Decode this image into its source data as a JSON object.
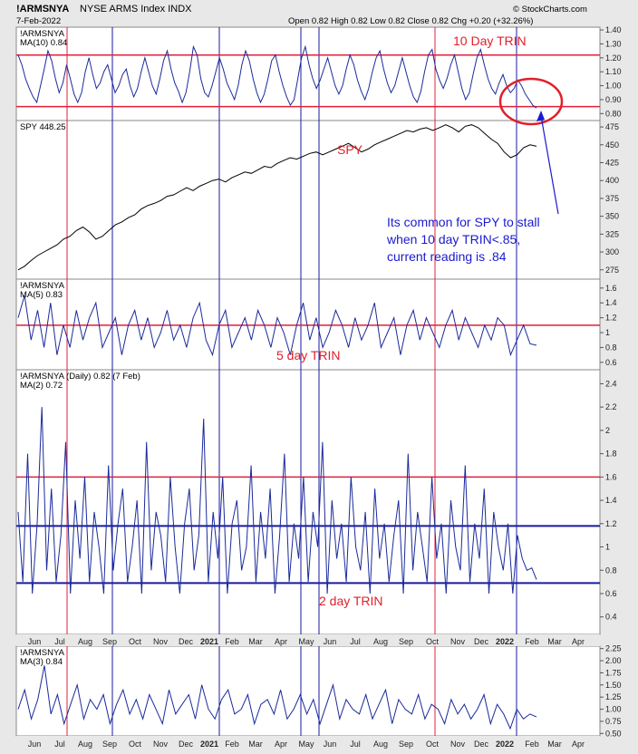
{
  "header": {
    "symbol": "!ARMSNYA",
    "name": "NYSE ARMS Index INDX",
    "date": "7-Feb-2022",
    "ohlc": "Open 0.82  High 0.82  Low 0.82  Close 0.82  Chg +0.20 (+32.26%)",
    "brand": "© StockCharts.com"
  },
  "annotations": {
    "trin10": "10 Day TRIN",
    "spy": "SPY",
    "trin5": "5 day TRIN",
    "trin2": "2 day TRIN",
    "note_line1": "Its common for SPY to stall",
    "note_line2": "when 10 day TRIN<.85,",
    "note_line3": "current reading is .84"
  },
  "panel_labels": {
    "p1a": "!ARMSNYA",
    "p1b": "MA(10) 0.84",
    "p2a": "SPY 448.25",
    "p3a": "!ARMSNYA",
    "p3b": "MA(5) 0.83",
    "p4a": "!ARMSNYA (Daily) 0.82 (7 Feb)",
    "p4b": "MA(2) 0.72",
    "p5a": "!ARMSNYA",
    "p5b": "MA(3) 0.84"
  },
  "colors": {
    "series": "#1a2a9a",
    "red_line": "#e0203a",
    "blue_line": "#1a1aa0",
    "spy": "#000000",
    "circle": "#e0202a"
  },
  "chart_data": [
    {
      "type": "line",
      "name": "10 Day TRIN",
      "ylim": [
        0.75,
        1.42
      ],
      "yticks": [
        0.8,
        0.9,
        1.0,
        1.1,
        1.2,
        1.3,
        1.4
      ],
      "ytick_labels": [
        "0.80",
        "0.90",
        "1.00",
        "1.10",
        "1.20",
        "1.30",
        "1.40"
      ],
      "hlines": [
        {
          "y": 1.22,
          "color": "red"
        },
        {
          "y": 0.85,
          "color": "red"
        }
      ],
      "values": [
        1.22,
        1.15,
        1.05,
        0.98,
        0.92,
        0.88,
        1.0,
        1.12,
        1.25,
        1.18,
        1.05,
        0.95,
        1.02,
        1.15,
        1.05,
        0.94,
        0.88,
        0.95,
        1.1,
        1.2,
        1.08,
        0.98,
        1.02,
        1.1,
        1.15,
        1.05,
        0.95,
        1.0,
        1.08,
        1.12,
        1.0,
        0.92,
        0.98,
        1.1,
        1.2,
        1.1,
        1.0,
        0.94,
        1.05,
        1.18,
        1.25,
        1.12,
        1.02,
        0.96,
        0.88,
        0.95,
        1.1,
        1.28,
        1.22,
        1.05,
        0.95,
        0.92,
        1.0,
        1.1,
        1.2,
        1.12,
        1.02,
        0.96,
        0.9,
        1.0,
        1.15,
        1.25,
        1.18,
        1.05,
        0.95,
        0.88,
        0.94,
        1.05,
        1.18,
        1.22,
        1.1,
        1.0,
        0.92,
        0.86,
        0.9,
        1.05,
        1.2,
        1.28,
        1.15,
        1.05,
        0.98,
        1.04,
        1.12,
        1.2,
        1.1,
        1.0,
        0.94,
        1.0,
        1.12,
        1.22,
        1.15,
        1.04,
        0.96,
        0.9,
        0.98,
        1.1,
        1.2,
        1.25,
        1.12,
        1.02,
        0.95,
        1.0,
        1.1,
        1.2,
        1.1,
        1.0,
        0.92,
        0.88,
        0.96,
        1.1,
        1.22,
        1.26,
        1.12,
        1.04,
        0.98,
        1.05,
        1.15,
        1.22,
        1.1,
        0.98,
        0.9,
        0.95,
        1.08,
        1.2,
        1.26,
        1.15,
        1.05,
        0.98,
        0.94,
        1.02,
        1.08,
        1.0,
        0.95,
        0.98,
        1.04,
        1.0,
        0.94,
        0.9,
        0.86,
        0.84
      ]
    },
    {
      "type": "line",
      "name": "SPY",
      "ylim": [
        262,
        484
      ],
      "yticks": [
        275,
        300,
        325,
        350,
        375,
        400,
        425,
        450,
        475
      ],
      "values": [
        275,
        280,
        288,
        295,
        300,
        305,
        310,
        318,
        322,
        330,
        335,
        328,
        318,
        322,
        330,
        338,
        342,
        348,
        352,
        360,
        365,
        368,
        372,
        378,
        380,
        385,
        390,
        386,
        392,
        396,
        400,
        402,
        398,
        404,
        408,
        412,
        410,
        415,
        420,
        418,
        424,
        428,
        432,
        430,
        434,
        438,
        440,
        436,
        440,
        444,
        448,
        452,
        446,
        440,
        444,
        450,
        454,
        458,
        462,
        466,
        470,
        468,
        472,
        474,
        470,
        474,
        478,
        474,
        468,
        476,
        478,
        474,
        466,
        458,
        452,
        440,
        432,
        436,
        446,
        450,
        448
      ]
    },
    {
      "type": "line",
      "name": "5 day TRIN",
      "ylim": [
        0.5,
        1.72
      ],
      "yticks": [
        0.6,
        0.8,
        1.0,
        1.2,
        1.4,
        1.6
      ],
      "hlines": [
        {
          "y": 1.1,
          "color": "red"
        }
      ],
      "values": [
        1.2,
        1.5,
        0.9,
        1.3,
        0.8,
        1.4,
        0.7,
        1.1,
        0.8,
        1.3,
        0.9,
        1.2,
        1.4,
        0.8,
        1.0,
        1.2,
        0.7,
        1.1,
        1.3,
        0.9,
        1.2,
        0.8,
        1.0,
        1.3,
        0.9,
        1.1,
        0.8,
        1.2,
        1.4,
        0.9,
        0.7,
        1.1,
        1.3,
        0.8,
        1.0,
        1.2,
        0.9,
        1.3,
        1.1,
        0.8,
        1.2,
        1.0,
        0.7,
        1.1,
        1.4,
        0.9,
        1.2,
        0.8,
        1.0,
        1.3,
        1.1,
        0.8,
        1.2,
        0.9,
        1.1,
        1.4,
        0.8,
        1.0,
        1.2,
        0.7,
        1.1,
        1.3,
        0.9,
        1.2,
        1.0,
        0.8,
        1.1,
        1.3,
        0.9,
        1.2,
        1.0,
        0.8,
        1.1,
        0.9,
        1.2,
        1.1,
        0.7,
        0.9,
        1.1,
        0.85,
        0.83
      ]
    },
    {
      "type": "line",
      "name": "2 day TRIN",
      "ylim": [
        0.25,
        2.52
      ],
      "yticks": [
        0.4,
        0.6,
        0.8,
        1.0,
        1.2,
        1.4,
        1.6,
        1.8,
        2.0,
        2.2,
        2.4
      ],
      "hlines": [
        {
          "y": 1.6,
          "color": "red"
        },
        {
          "y": 1.18,
          "color": "blue"
        },
        {
          "y": 0.69,
          "color": "blue"
        }
      ],
      "values": [
        1.3,
        0.7,
        1.8,
        0.6,
        1.2,
        2.2,
        0.8,
        1.5,
        0.7,
        1.1,
        1.9,
        0.6,
        1.4,
        0.9,
        1.6,
        0.7,
        1.3,
        1.0,
        0.6,
        1.7,
        0.8,
        1.2,
        1.5,
        0.7,
        1.0,
        1.4,
        0.6,
        1.9,
        0.8,
        1.3,
        1.1,
        0.7,
        1.6,
        1.0,
        0.6,
        1.2,
        1.5,
        0.8,
        1.1,
        2.1,
        0.7,
        1.3,
        0.9,
        1.6,
        0.6,
        1.2,
        1.4,
        0.8,
        1.0,
        1.7,
        0.7,
        1.3,
        0.9,
        1.5,
        0.6,
        1.1,
        1.8,
        0.7,
        1.2,
        0.9,
        1.6,
        0.7,
        1.3,
        1.0,
        1.9,
        0.6,
        1.4,
        0.9,
        1.2,
        0.7,
        1.6,
        1.0,
        0.8,
        1.3,
        0.6,
        1.5,
        0.9,
        1.2,
        0.7,
        1.1,
        1.4,
        0.6,
        1.8,
        0.8,
        1.3,
        1.0,
        0.7,
        1.6,
        0.9,
        1.2,
        0.6,
        1.4,
        1.0,
        0.8,
        1.7,
        0.7,
        1.2,
        0.9,
        1.5,
        0.6,
        1.3,
        1.0,
        0.8,
        1.2,
        0.6,
        1.1,
        0.9,
        0.8,
        0.82,
        0.72
      ]
    },
    {
      "type": "line",
      "name": "MA(3)",
      "ylim": [
        0.45,
        2.3
      ],
      "yticks": [
        0.5,
        0.75,
        1.0,
        1.25,
        1.5,
        1.75,
        2.0,
        2.25
      ],
      "ytick_labels": [
        "0.50",
        "0.75",
        "1.00",
        "1.25",
        "1.50",
        "1.75",
        "2.00",
        "2.25"
      ],
      "values": [
        1.0,
        1.4,
        0.8,
        1.2,
        1.9,
        0.9,
        1.3,
        0.7,
        1.1,
        1.5,
        0.8,
        1.2,
        1.0,
        1.3,
        0.7,
        1.1,
        1.4,
        0.9,
        1.2,
        0.8,
        1.3,
        1.0,
        0.7,
        1.4,
        0.9,
        1.1,
        1.3,
        0.8,
        1.5,
        1.0,
        0.8,
        1.2,
        1.4,
        0.9,
        1.0,
        1.3,
        0.7,
        1.1,
        1.2,
        0.9,
        1.4,
        0.8,
        1.0,
        1.3,
        0.9,
        1.2,
        0.7,
        1.1,
        1.5,
        0.8,
        1.2,
        1.0,
        0.9,
        1.3,
        0.8,
        1.1,
        1.4,
        0.7,
        1.2,
        1.0,
        0.9,
        1.3,
        0.8,
        1.1,
        1.0,
        0.7,
        1.2,
        0.9,
        1.1,
        0.8,
        1.0,
        1.3,
        0.7,
        1.1,
        0.9,
        0.6,
        1.0,
        0.8,
        0.9,
        0.84
      ]
    }
  ],
  "xaxis": {
    "labels": [
      "Jun",
      "Jul",
      "Aug",
      "Sep",
      "Oct",
      "Nov",
      "Dec",
      "2021",
      "Feb",
      "Mar",
      "Apr",
      "May",
      "Jun",
      "Jul",
      "Aug",
      "Sep",
      "Oct",
      "Nov",
      "Dec",
      "2022",
      "Feb",
      "Mar",
      "Apr"
    ],
    "bold": [
      "2021",
      "2022"
    ]
  }
}
